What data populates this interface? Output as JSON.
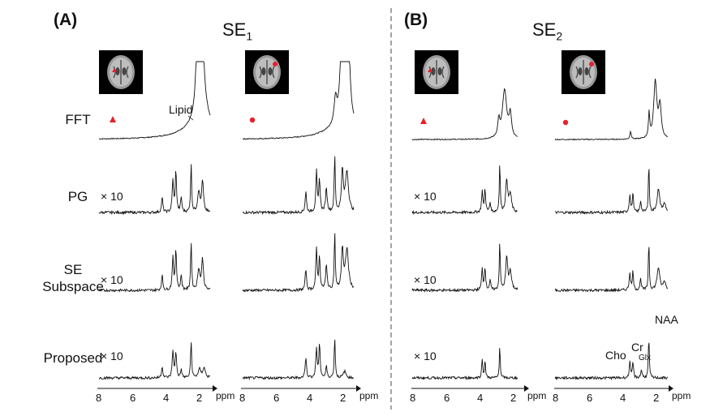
{
  "panels": [
    {
      "tag": "(A)",
      "title": "SE",
      "title_sub": "1"
    },
    {
      "tag": "(B)",
      "title": "SE",
      "title_sub": "2"
    }
  ],
  "rows": [
    {
      "label": "FFT",
      "scale": ""
    },
    {
      "label": "PG",
      "scale": "× 10"
    },
    {
      "label": "SE\nSubspace",
      "scale": "× 10"
    },
    {
      "label": "Proposed",
      "scale": "× 10"
    }
  ],
  "axis": {
    "ticks": [
      "8",
      "6",
      "4",
      "2"
    ],
    "unit": "ppm"
  },
  "annotations": {
    "lipid": "Lipid",
    "naa": "NAA",
    "cr": "Cr",
    "cho": "Cho",
    "glx": "Glx"
  },
  "markers": [
    {
      "shape": "triangle",
      "color": "#e8202a"
    },
    {
      "shape": "circle",
      "color": "#e8202a"
    },
    {
      "shape": "triangle",
      "color": "#e8202a"
    },
    {
      "shape": "circle",
      "color": "#e8202a"
    }
  ],
  "colors": {
    "marker": "#e8202a",
    "line": "#111111",
    "divider": "#666666"
  }
}
